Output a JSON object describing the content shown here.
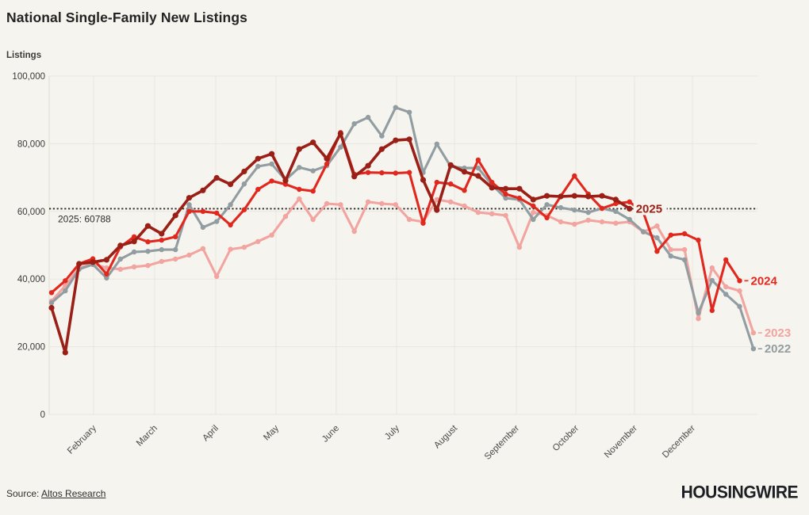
{
  "header": {
    "title": "National Single-Family New Listings"
  },
  "footer": {
    "source_prefix": "Source: ",
    "source_link": "Altos Research",
    "brand": "HOUSINGWIRE"
  },
  "chart_data": {
    "type": "line",
    "title": "National Single-Family New Listings",
    "xlabel": "",
    "ylabel": "Listings",
    "ylim": [
      0,
      100000
    ],
    "grid": true,
    "x_unit": "week-of-year",
    "yticks": [
      0,
      20000,
      40000,
      60000,
      80000,
      100000
    ],
    "ytick_labels": [
      "0",
      "20,000",
      "40,000",
      "60,000",
      "80,000",
      "100,000"
    ],
    "months": [
      {
        "label": "February",
        "week": 4.05
      },
      {
        "label": "March",
        "week": 8.49
      },
      {
        "label": "April",
        "week": 12.93
      },
      {
        "label": "May",
        "week": 17.31
      },
      {
        "label": "June",
        "week": 21.69
      },
      {
        "label": "July",
        "week": 26.07
      },
      {
        "label": "August",
        "week": 30.28
      },
      {
        "label": "September",
        "week": 34.78
      },
      {
        "label": "October",
        "week": 39.1
      },
      {
        "label": "November",
        "week": 43.36
      },
      {
        "label": "December",
        "week": 47.57
      }
    ],
    "reference_line": {
      "label": "2025: 60788",
      "value": 60788,
      "color": "#2b2b2b"
    },
    "legend_position": "line-ends-right",
    "series": [
      {
        "name": "2023",
        "color": "#f2a4a0",
        "values": [
          33500,
          38000,
          43300,
          44500,
          43300,
          42900,
          43600,
          44000,
          45200,
          45900,
          47100,
          49000,
          40800,
          48800,
          49400,
          51100,
          53000,
          58500,
          63700,
          57600,
          62300,
          62000,
          54100,
          62800,
          62300,
          62000,
          57600,
          56900,
          63500,
          62800,
          61600,
          59700,
          59300,
          58800,
          49400,
          59700,
          58800,
          56900,
          56200,
          57400,
          56900,
          56500,
          56900,
          53900,
          55700,
          48700,
          48700,
          28300,
          43300,
          37700,
          36500,
          24100
        ]
      },
      {
        "name": "2022",
        "color": "#929da1",
        "values": [
          33000,
          36500,
          42900,
          44300,
          40300,
          45900,
          48000,
          48200,
          48700,
          48700,
          62000,
          55300,
          57000,
          62000,
          68100,
          73300,
          74000,
          69300,
          73000,
          72000,
          73500,
          79000,
          85900,
          87800,
          82300,
          90700,
          89300,
          71500,
          79900,
          73300,
          72800,
          72800,
          67900,
          63900,
          63500,
          57600,
          62000,
          61100,
          60400,
          59700,
          60900,
          60000,
          57600,
          54000,
          52200,
          46800,
          45700,
          30000,
          39600,
          35500,
          31900,
          19400
        ]
      },
      {
        "name": "2024",
        "color": "#e1281e",
        "values": [
          36000,
          39500,
          44500,
          46000,
          41500,
          49500,
          52500,
          51000,
          51500,
          52500,
          60000,
          60000,
          59500,
          56000,
          60500,
          66500,
          69000,
          68000,
          66500,
          66000,
          74000,
          83300,
          71000,
          71500,
          71400,
          71300,
          71500,
          56500,
          68600,
          68100,
          66200,
          75200,
          68600,
          65100,
          63900,
          61600,
          58100,
          64500,
          70500,
          65100,
          60900,
          62300,
          62800,
          59700,
          48200,
          53000,
          53400,
          51500,
          30700,
          45700,
          39500
        ]
      },
      {
        "name": "2025",
        "color": "#9a1f16",
        "values": [
          31500,
          18300,
          44500,
          45000,
          45700,
          49900,
          51100,
          55700,
          53400,
          58800,
          64000,
          66200,
          69900,
          68000,
          71800,
          75600,
          77000,
          69100,
          78400,
          80400,
          75600,
          83000,
          70300,
          73500,
          78400,
          81000,
          81300,
          69300,
          60400,
          73700,
          71700,
          70500,
          67000,
          66700,
          66700,
          63500,
          64600,
          64400,
          64600,
          64400,
          64600,
          63500,
          60788
        ]
      }
    ]
  }
}
